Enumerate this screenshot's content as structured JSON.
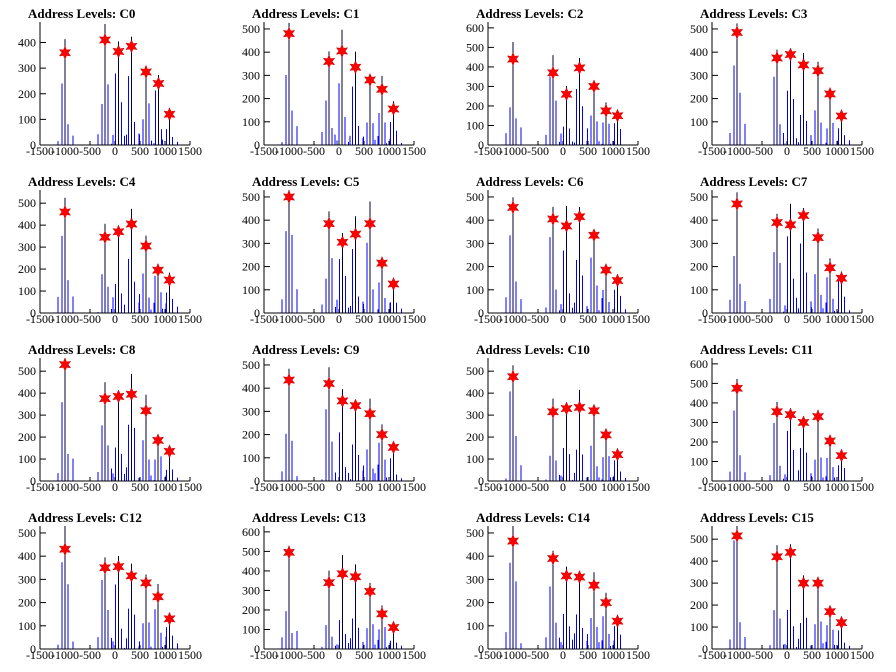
{
  "chart_data": [
    {
      "type": "histogram",
      "title": "Address Levels: C0",
      "xlim": [
        -1500,
        1500
      ],
      "ylim": [
        0,
        480
      ],
      "yticks": [
        0,
        100,
        200,
        300,
        400
      ],
      "peaks": [
        [
          -1000,
          360
        ],
        [
          -200,
          410
        ],
        [
          70,
          365
        ],
        [
          330,
          385
        ],
        [
          620,
          285
        ],
        [
          870,
          240
        ],
        [
          1090,
          120
        ]
      ]
    },
    {
      "type": "histogram",
      "title": "Address Levels: C1",
      "xlim": [
        -1500,
        1500
      ],
      "ylim": [
        0,
        530
      ],
      "yticks": [
        0,
        100,
        200,
        300,
        400,
        500
      ],
      "peaks": [
        [
          -1000,
          480
        ],
        [
          -200,
          360
        ],
        [
          60,
          405
        ],
        [
          330,
          335
        ],
        [
          620,
          280
        ],
        [
          860,
          240
        ],
        [
          1090,
          155
        ]
      ]
    },
    {
      "type": "histogram",
      "title": "Address Levels: C2",
      "xlim": [
        -1500,
        1500
      ],
      "ylim": [
        0,
        630
      ],
      "yticks": [
        0,
        100,
        200,
        300,
        400,
        500,
        600
      ],
      "peaks": [
        [
          -1000,
          440
        ],
        [
          -200,
          370
        ],
        [
          70,
          260
        ],
        [
          330,
          395
        ],
        [
          620,
          300
        ],
        [
          860,
          175
        ],
        [
          1090,
          150
        ]
      ]
    },
    {
      "type": "histogram",
      "title": "Address Levels: C3",
      "xlim": [
        -1500,
        1500
      ],
      "ylim": [
        0,
        530
      ],
      "yticks": [
        0,
        100,
        200,
        300,
        400,
        500
      ],
      "peaks": [
        [
          -1000,
          485
        ],
        [
          -200,
          375
        ],
        [
          70,
          390
        ],
        [
          330,
          345
        ],
        [
          620,
          320
        ],
        [
          860,
          220
        ],
        [
          1090,
          125
        ]
      ]
    },
    {
      "type": "histogram",
      "title": "Address Levels: C4",
      "xlim": [
        -1500,
        1500
      ],
      "ylim": [
        0,
        560
      ],
      "yticks": [
        0,
        100,
        200,
        300,
        400,
        500
      ],
      "peaks": [
        [
          -1000,
          460
        ],
        [
          -200,
          345
        ],
        [
          70,
          370
        ],
        [
          330,
          405
        ],
        [
          620,
          305
        ],
        [
          860,
          195
        ],
        [
          1090,
          150
        ]
      ]
    },
    {
      "type": "histogram",
      "title": "Address Levels: C5",
      "xlim": [
        -1500,
        1500
      ],
      "ylim": [
        0,
        530
      ],
      "yticks": [
        0,
        100,
        200,
        300,
        400,
        500
      ],
      "peaks": [
        [
          -1000,
          500
        ],
        [
          -200,
          385
        ],
        [
          70,
          305
        ],
        [
          330,
          340
        ],
        [
          620,
          385
        ],
        [
          860,
          215
        ],
        [
          1090,
          125
        ]
      ]
    },
    {
      "type": "histogram",
      "title": "Address Levels: C6",
      "xlim": [
        -1500,
        1500
      ],
      "ylim": [
        0,
        530
      ],
      "yticks": [
        0,
        100,
        200,
        300,
        400,
        500
      ],
      "peaks": [
        [
          -1000,
          455
        ],
        [
          -200,
          405
        ],
        [
          70,
          375
        ],
        [
          330,
          415
        ],
        [
          620,
          335
        ],
        [
          860,
          185
        ],
        [
          1090,
          140
        ]
      ]
    },
    {
      "type": "histogram",
      "title": "Address Levels: C7",
      "xlim": [
        -1500,
        1500
      ],
      "ylim": [
        0,
        530
      ],
      "yticks": [
        0,
        100,
        200,
        300,
        400,
        500
      ],
      "peaks": [
        [
          -1000,
          470
        ],
        [
          -200,
          390
        ],
        [
          70,
          380
        ],
        [
          330,
          420
        ],
        [
          620,
          325
        ],
        [
          860,
          195
        ],
        [
          1090,
          150
        ]
      ]
    },
    {
      "type": "histogram",
      "title": "Address Levels: C8",
      "xlim": [
        -1500,
        1500
      ],
      "ylim": [
        0,
        560
      ],
      "yticks": [
        0,
        100,
        200,
        300,
        400,
        500
      ],
      "peaks": [
        [
          -1000,
          530
        ],
        [
          -200,
          375
        ],
        [
          70,
          385
        ],
        [
          330,
          395
        ],
        [
          620,
          320
        ],
        [
          860,
          185
        ],
        [
          1090,
          135
        ]
      ]
    },
    {
      "type": "histogram",
      "title": "Address Levels: C9",
      "xlim": [
        -1500,
        1500
      ],
      "ylim": [
        0,
        530
      ],
      "yticks": [
        0,
        100,
        200,
        300,
        400,
        500
      ],
      "peaks": [
        [
          -1000,
          435
        ],
        [
          -200,
          420
        ],
        [
          70,
          345
        ],
        [
          330,
          325
        ],
        [
          620,
          290
        ],
        [
          860,
          200
        ],
        [
          1090,
          145
        ]
      ]
    },
    {
      "type": "histogram",
      "title": "Address Levels: C10",
      "xlim": [
        -1500,
        1500
      ],
      "ylim": [
        0,
        560
      ],
      "yticks": [
        0,
        100,
        200,
        300,
        400,
        500
      ],
      "peaks": [
        [
          -1000,
          475
        ],
        [
          -200,
          315
        ],
        [
          70,
          330
        ],
        [
          330,
          335
        ],
        [
          620,
          320
        ],
        [
          860,
          210
        ],
        [
          1090,
          120
        ]
      ]
    },
    {
      "type": "histogram",
      "title": "Address Levels: C11",
      "xlim": [
        -1500,
        1500
      ],
      "ylim": [
        0,
        630
      ],
      "yticks": [
        0,
        100,
        200,
        300,
        400,
        500,
        600
      ],
      "peaks": [
        [
          -1000,
          475
        ],
        [
          -200,
          355
        ],
        [
          70,
          340
        ],
        [
          330,
          300
        ],
        [
          620,
          330
        ],
        [
          860,
          205
        ],
        [
          1090,
          130
        ]
      ]
    },
    {
      "type": "histogram",
      "title": "Address Levels: C12",
      "xlim": [
        -1500,
        1500
      ],
      "ylim": [
        0,
        530
      ],
      "yticks": [
        0,
        100,
        200,
        300,
        400,
        500
      ],
      "peaks": [
        [
          -1000,
          430
        ],
        [
          -200,
          350
        ],
        [
          70,
          355
        ],
        [
          330,
          315
        ],
        [
          620,
          285
        ],
        [
          860,
          225
        ],
        [
          1090,
          130
        ]
      ]
    },
    {
      "type": "histogram",
      "title": "Address Levels: C13",
      "xlim": [
        -1500,
        1500
      ],
      "ylim": [
        0,
        630
      ],
      "yticks": [
        0,
        100,
        200,
        300,
        400,
        500,
        600
      ],
      "peaks": [
        [
          -1000,
          495
        ],
        [
          -200,
          340
        ],
        [
          70,
          385
        ],
        [
          330,
          370
        ],
        [
          620,
          295
        ],
        [
          860,
          180
        ],
        [
          1090,
          110
        ]
      ]
    },
    {
      "type": "histogram",
      "title": "Address Levels: C14",
      "xlim": [
        -1500,
        1500
      ],
      "ylim": [
        0,
        530
      ],
      "yticks": [
        0,
        100,
        200,
        300,
        400,
        500
      ],
      "peaks": [
        [
          -1000,
          465
        ],
        [
          -200,
          390
        ],
        [
          70,
          315
        ],
        [
          330,
          310
        ],
        [
          620,
          275
        ],
        [
          860,
          200
        ],
        [
          1090,
          120
        ]
      ]
    },
    {
      "type": "histogram",
      "title": "Address Levels: C15",
      "xlim": [
        -1500,
        1500
      ],
      "ylim": [
        0,
        560
      ],
      "yticks": [
        0,
        100,
        200,
        300,
        400,
        500
      ],
      "peaks": [
        [
          -1000,
          515
        ],
        [
          -200,
          420
        ],
        [
          70,
          440
        ],
        [
          330,
          300
        ],
        [
          620,
          300
        ],
        [
          860,
          170
        ],
        [
          1090,
          120
        ]
      ]
    }
  ],
  "xticks": [
    -1500,
    -1000,
    -500,
    0,
    500,
    1000,
    1500
  ],
  "colors": {
    "histogram": "#0000ff",
    "marker": "#ff0000",
    "axis": "#000000"
  },
  "marker_icon": "red-star-marker"
}
